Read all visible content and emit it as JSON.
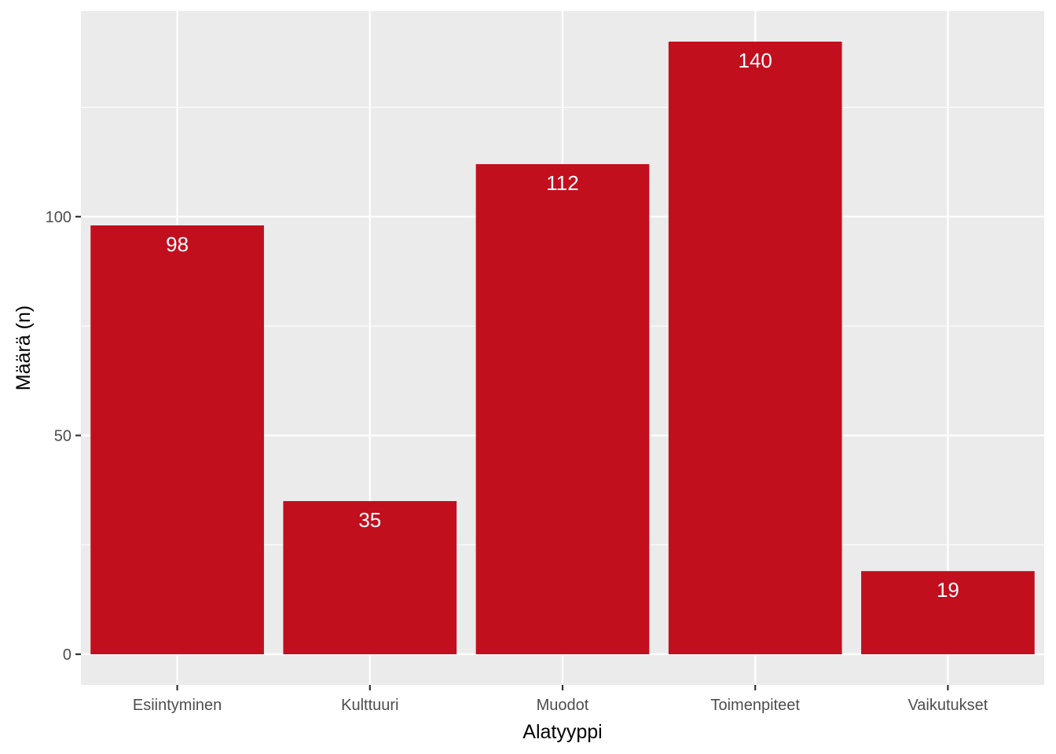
{
  "chart_data": {
    "type": "bar",
    "categories": [
      "Esiintyminen",
      "Kulttuuri",
      "Muodot",
      "Toimenpiteet",
      "Vaikutukset"
    ],
    "values": [
      98,
      35,
      112,
      140,
      19
    ],
    "data_labels": [
      "98",
      "35",
      "112",
      "140",
      "19"
    ],
    "title": "",
    "xlabel": "Alatyyppi",
    "ylabel": "Määrä (n)",
    "ylim": [
      -7,
      147
    ],
    "yticks": [
      0,
      50,
      100
    ],
    "ytick_labels": [
      "0",
      "50",
      "100"
    ],
    "grid": true,
    "legend": "none",
    "bar_color": "#c20f1e",
    "panel_background": "#ebebeb",
    "grid_color": "#ffffff"
  }
}
